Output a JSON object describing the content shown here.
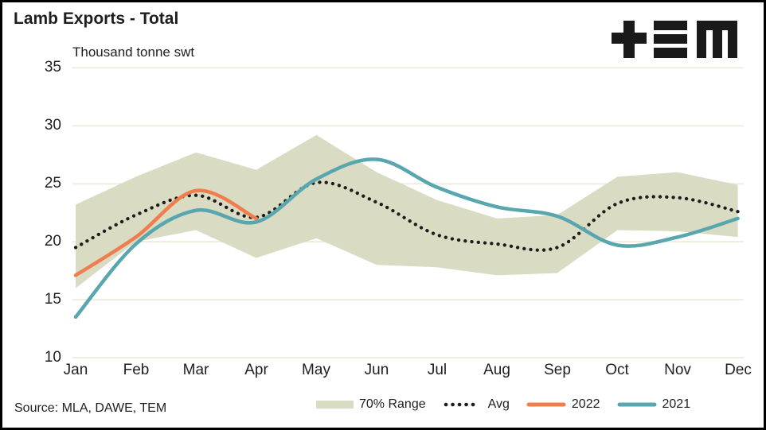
{
  "frame": {
    "source": "Source: MLA, DAWE, TEM",
    "logo_name": "TEM logo"
  },
  "colors": {
    "background": "#FFFFFF",
    "border": "#000000",
    "grid": "#EFEDE0",
    "text": "#1F1F1F",
    "logo": "#1A1A1A",
    "band": "#D9DBC3",
    "avg": "#1C1C1C",
    "y2022": "#EF7D4D",
    "y2021": "#58A6AE"
  },
  "chart_data": {
    "type": "line",
    "title": "Lamb Exports - Total",
    "ylabel": "Thousand tonne swt",
    "xlabel": "",
    "categories": [
      "Jan",
      "Feb",
      "Mar",
      "Apr",
      "May",
      "Jun",
      "Jul",
      "Aug",
      "Sep",
      "Oct",
      "Nov",
      "Dec"
    ],
    "ylim": [
      10,
      35
    ],
    "yticks": [
      10,
      15,
      20,
      25,
      30,
      35
    ],
    "grid": "horizontal",
    "legend_position": "bottom",
    "band": {
      "name": "70% Range",
      "color": "#D9DBC3",
      "top": [
        23.2,
        25.6,
        27.7,
        26.2,
        29.2,
        26.0,
        23.6,
        22.0,
        22.3,
        25.6,
        26.0,
        24.9
      ],
      "bottom": [
        16.0,
        20.0,
        21.0,
        18.6,
        20.3,
        18.0,
        17.8,
        17.1,
        17.3,
        21.0,
        20.9,
        20.4
      ]
    },
    "series": [
      {
        "name": "Avg",
        "style": "dotted",
        "color": "#1C1C1C",
        "values": [
          19.5,
          22.3,
          24.0,
          22.1,
          25.1,
          23.4,
          20.6,
          19.8,
          19.5,
          23.3,
          23.8,
          22.6
        ]
      },
      {
        "name": "2022",
        "style": "solid",
        "color": "#EF7D4D",
        "values": [
          17.1,
          20.4,
          24.4,
          22.0
        ]
      },
      {
        "name": "2021",
        "style": "solid",
        "color": "#58A6AE",
        "values": [
          13.5,
          19.8,
          22.7,
          21.7,
          25.4,
          27.1,
          24.7,
          23.0,
          22.2,
          19.7,
          20.4,
          22.0
        ]
      }
    ]
  }
}
